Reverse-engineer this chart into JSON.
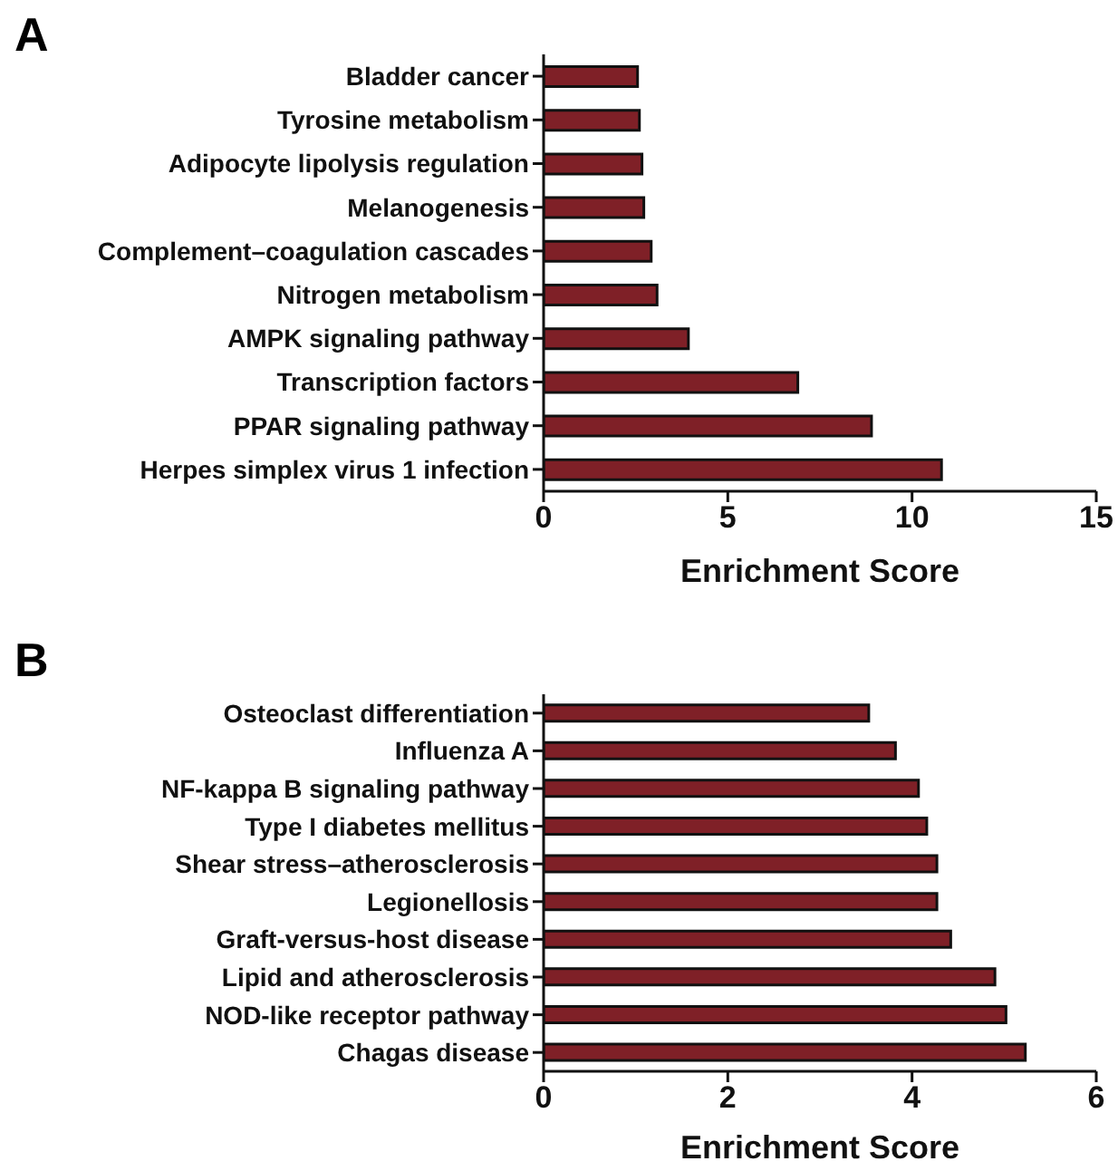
{
  "chart_data": [
    {
      "type": "bar",
      "orientation": "horizontal",
      "title": "A",
      "xlabel": "Enrichment Score",
      "categories": [
        "Bladder cancer",
        "Tyrosine metabolism",
        "Adipocyte lipolysis regulation",
        "Melanogenesis",
        "Complement–coagulation cascades",
        "Nitrogen metabolism",
        "AMPK signaling pathway",
        "Transcription factors",
        "PPAR signaling pathway",
        "Herpes simplex virus 1 infection"
      ],
      "values": [
        2.55,
        2.6,
        2.67,
        2.72,
        2.92,
        3.08,
        3.93,
        6.9,
        8.9,
        10.8
      ],
      "color": "#7f2027",
      "xlim": [
        0,
        15
      ],
      "xticks": [
        0,
        5,
        10,
        15
      ],
      "grid": false,
      "legend": false
    },
    {
      "type": "bar",
      "orientation": "horizontal",
      "title": "B",
      "xlabel": "Enrichment Score",
      "categories": [
        "Osteoclast differentiation",
        "Influenza A",
        "NF-kappa B signaling pathway",
        "Type I diabetes mellitus",
        "Shear stress–atherosclerosis",
        "Legionellosis",
        "Graft-versus-host disease",
        "Lipid and atherosclerosis",
        "NOD-like receptor pathway",
        "Chagas disease"
      ],
      "values": [
        3.53,
        3.82,
        4.07,
        4.16,
        4.27,
        4.27,
        4.42,
        4.9,
        5.02,
        5.23
      ],
      "color": "#7f2027",
      "xlim": [
        0,
        6
      ],
      "xticks": [
        0,
        2,
        4,
        6
      ],
      "grid": false,
      "legend": false
    }
  ]
}
